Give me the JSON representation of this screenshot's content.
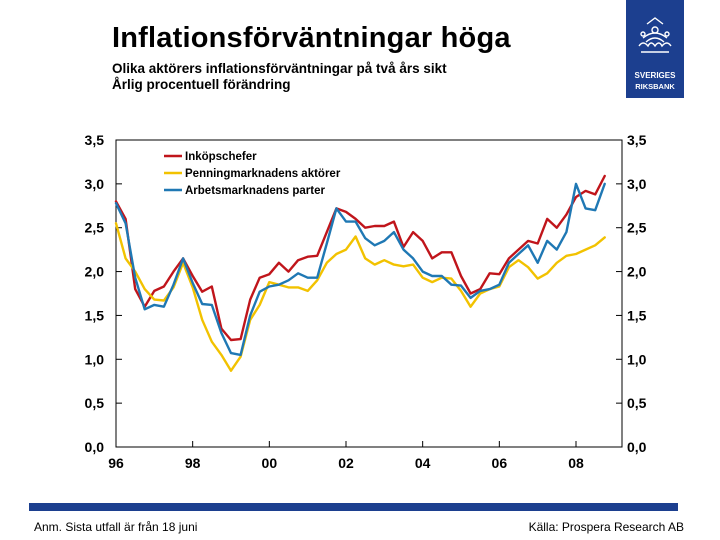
{
  "header": {
    "title": "Inflationsförväntningar höga",
    "subtitle_line1": "Olika aktörers inflationsförväntningar på två års sikt",
    "subtitle_line2": "Årlig procentuell förändring"
  },
  "logo": {
    "line1": "SVERIGES",
    "line2": "RIKSBANK",
    "color": "#1c3f8f"
  },
  "footer": {
    "note": "Anm. Sista utfall är från 18 juni",
    "source": "Källa: Prospera Research AB"
  },
  "chart_data": {
    "type": "line",
    "title": "",
    "xlabel": "",
    "ylabel": "",
    "xlim": [
      1996,
      2009.2
    ],
    "ylim": [
      0,
      3.5
    ],
    "x_ticks": [
      1996,
      1998,
      2000,
      2002,
      2004,
      2006,
      2008
    ],
    "x_tick_labels": [
      "96",
      "98",
      "00",
      "02",
      "04",
      "06",
      "08"
    ],
    "y_ticks": [
      0,
      0.5,
      1.0,
      1.5,
      2.0,
      2.5,
      3.0,
      3.5
    ],
    "y_tick_labels": [
      "0,0",
      "0,5",
      "1,0",
      "1,5",
      "2,0",
      "2,5",
      "3,0",
      "3,5"
    ],
    "legend_position": "top-left",
    "series": [
      {
        "name": "Inköpschefer",
        "color": "#c0151b",
        "x": [
          1996.0,
          1996.25,
          1996.5,
          1996.75,
          1997.0,
          1997.25,
          1997.5,
          1997.75,
          1998.0,
          1998.25,
          1998.5,
          1998.75,
          1999.0,
          1999.25,
          1999.5,
          1999.75,
          2000.0,
          2000.25,
          2000.5,
          2000.75,
          2001.0,
          2001.25,
          2001.5,
          2001.75,
          2002.0,
          2002.25,
          2002.5,
          2002.75,
          2003.0,
          2003.25,
          2003.5,
          2003.75,
          2004.0,
          2004.25,
          2004.5,
          2004.75,
          2005.0,
          2005.25,
          2005.5,
          2005.75,
          2006.0,
          2006.25,
          2006.5,
          2006.75,
          2007.0,
          2007.25,
          2007.5,
          2007.75,
          2008.0,
          2008.25,
          2008.5,
          2008.75
        ],
        "values": [
          2.8,
          2.6,
          1.8,
          1.6,
          1.78,
          1.83,
          2.0,
          2.15,
          1.95,
          1.77,
          1.83,
          1.35,
          1.22,
          1.23,
          1.68,
          1.93,
          1.97,
          2.1,
          2.0,
          2.13,
          2.17,
          2.18,
          2.45,
          2.72,
          2.68,
          2.6,
          2.5,
          2.52,
          2.52,
          2.57,
          2.28,
          2.45,
          2.35,
          2.15,
          2.22,
          2.22,
          1.95,
          1.75,
          1.8,
          1.98,
          1.97,
          2.15,
          2.25,
          2.35,
          2.32,
          2.6,
          2.5,
          2.65,
          2.85,
          2.92,
          2.88,
          3.09
        ]
      },
      {
        "name": "Penningmarknadens aktörer",
        "color": "#f2c200",
        "x": [
          1996.0,
          1996.25,
          1996.5,
          1996.75,
          1997.0,
          1997.25,
          1997.5,
          1997.75,
          1998.0,
          1998.25,
          1998.5,
          1998.75,
          1999.0,
          1999.25,
          1999.5,
          1999.75,
          2000.0,
          2000.25,
          2000.5,
          2000.75,
          2001.0,
          2001.25,
          2001.5,
          2001.75,
          2002.0,
          2002.25,
          2002.5,
          2002.75,
          2003.0,
          2003.25,
          2003.5,
          2003.75,
          2004.0,
          2004.25,
          2004.5,
          2004.75,
          2005.0,
          2005.25,
          2005.5,
          2005.75,
          2006.0,
          2006.25,
          2006.5,
          2006.75,
          2007.0,
          2007.25,
          2007.5,
          2007.75,
          2008.0,
          2008.25,
          2008.5,
          2008.75
        ],
        "values": [
          2.55,
          2.15,
          2.0,
          1.8,
          1.68,
          1.67,
          1.82,
          2.1,
          1.82,
          1.45,
          1.2,
          1.05,
          0.87,
          1.03,
          1.45,
          1.62,
          1.88,
          1.85,
          1.82,
          1.82,
          1.78,
          1.9,
          2.1,
          2.2,
          2.25,
          2.4,
          2.15,
          2.08,
          2.13,
          2.08,
          2.06,
          2.08,
          1.93,
          1.88,
          1.93,
          1.92,
          1.78,
          1.6,
          1.75,
          1.8,
          1.83,
          2.05,
          2.13,
          2.05,
          1.92,
          1.98,
          2.1,
          2.18,
          2.2,
          2.25,
          2.3,
          2.39
        ]
      },
      {
        "name": "Arbetsmarknadens parter",
        "color": "#1f78b4",
        "x": [
          1996.0,
          1996.25,
          1996.5,
          1996.75,
          1997.0,
          1997.25,
          1997.5,
          1997.75,
          1998.0,
          1998.25,
          1998.5,
          1998.75,
          1999.0,
          1999.25,
          1999.5,
          1999.75,
          2000.0,
          2000.25,
          2000.5,
          2000.75,
          2001.0,
          2001.25,
          2001.5,
          2001.75,
          2002.0,
          2002.25,
          2002.5,
          2002.75,
          2003.0,
          2003.25,
          2003.5,
          2003.75,
          2004.0,
          2004.25,
          2004.5,
          2004.75,
          2005.0,
          2005.25,
          2005.5,
          2005.75,
          2006.0,
          2006.25,
          2006.5,
          2006.75,
          2007.0,
          2007.25,
          2007.5,
          2007.75,
          2008.0,
          2008.25,
          2008.5,
          2008.75
        ],
        "values": [
          2.78,
          2.55,
          1.93,
          1.57,
          1.62,
          1.6,
          1.85,
          2.15,
          1.87,
          1.63,
          1.62,
          1.3,
          1.07,
          1.05,
          1.5,
          1.77,
          1.83,
          1.85,
          1.9,
          1.98,
          1.93,
          1.93,
          2.32,
          2.72,
          2.57,
          2.57,
          2.38,
          2.3,
          2.35,
          2.45,
          2.25,
          2.15,
          2.0,
          1.95,
          1.95,
          1.85,
          1.84,
          1.7,
          1.78,
          1.8,
          1.85,
          2.1,
          2.2,
          2.3,
          2.1,
          2.35,
          2.25,
          2.45,
          3.0,
          2.72,
          2.7,
          3.0
        ]
      }
    ]
  }
}
